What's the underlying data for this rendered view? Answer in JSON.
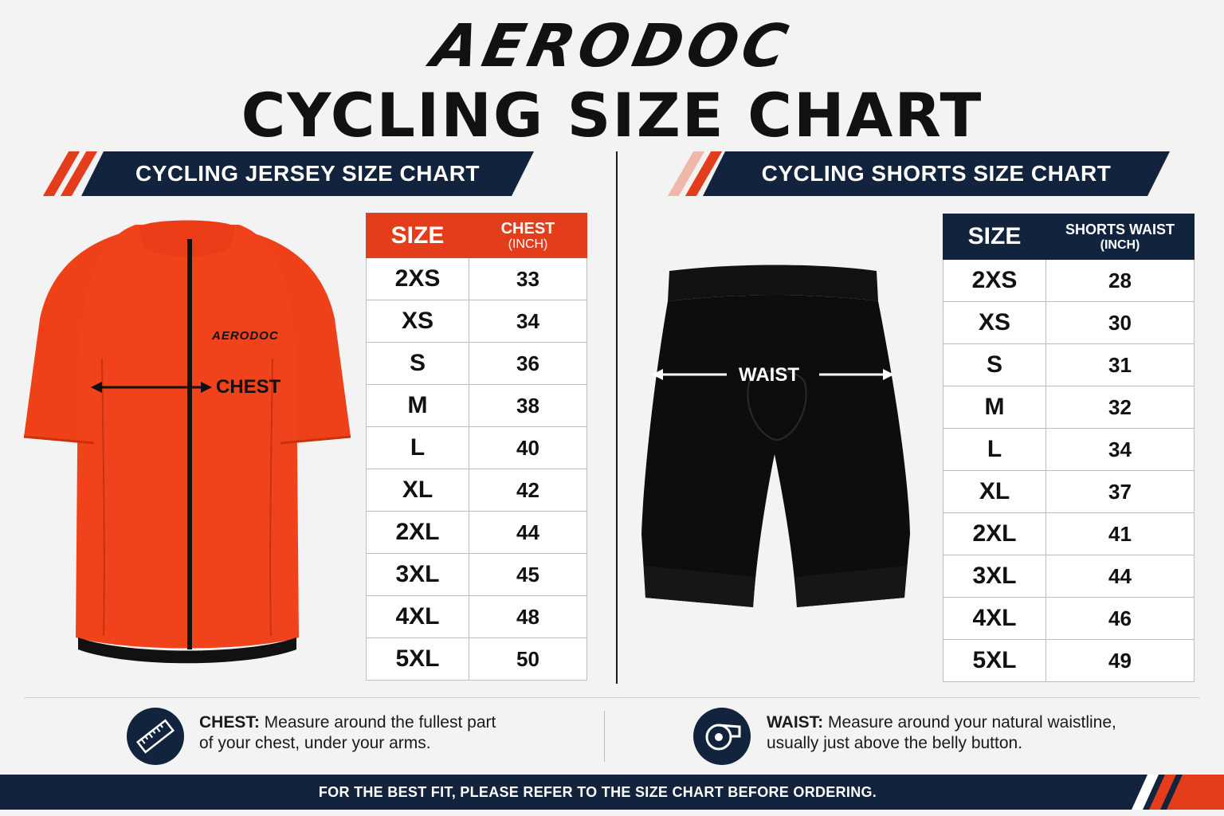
{
  "brand": "AERODOC",
  "title": "CYCLING SIZE CHART",
  "jersey": {
    "banner": "CYCLING JERSEY SIZE CHART",
    "chest_label": "CHEST",
    "logo": "AERODOC",
    "header_size": "SIZE",
    "header_measure": "CHEST",
    "header_unit": "(INCH)",
    "rows": [
      {
        "size": "2XS",
        "value": "33"
      },
      {
        "size": "XS",
        "value": "34"
      },
      {
        "size": "S",
        "value": "36"
      },
      {
        "size": "M",
        "value": "38"
      },
      {
        "size": "L",
        "value": "40"
      },
      {
        "size": "XL",
        "value": "42"
      },
      {
        "size": "2XL",
        "value": "44"
      },
      {
        "size": "3XL",
        "value": "45"
      },
      {
        "size": "4XL",
        "value": "48"
      },
      {
        "size": "5XL",
        "value": "50"
      }
    ]
  },
  "shorts": {
    "banner": "CYCLING SHORTS SIZE CHART",
    "waist_label": "WAIST",
    "header_size": "SIZE",
    "header_measure": "SHORTS WAIST",
    "header_unit": "(INCH)",
    "rows": [
      {
        "size": "2XS",
        "value": "28"
      },
      {
        "size": "XS",
        "value": "30"
      },
      {
        "size": "S",
        "value": "31"
      },
      {
        "size": "M",
        "value": "32"
      },
      {
        "size": "L",
        "value": "34"
      },
      {
        "size": "XL",
        "value": "37"
      },
      {
        "size": "2XL",
        "value": "41"
      },
      {
        "size": "3XL",
        "value": "44"
      },
      {
        "size": "4XL",
        "value": "46"
      },
      {
        "size": "5XL",
        "value": "49"
      }
    ]
  },
  "info": {
    "chest_title": "CHEST:",
    "chest_line1": " Measure around the fullest part",
    "chest_line2": "of your chest, under your arms.",
    "waist_title": "WAIST:",
    "waist_line1": " Measure around your natural waistline,",
    "waist_line2": "usually just above the belly button."
  },
  "footer": "FOR THE BEST FIT, PLEASE REFER TO THE SIZE CHART BEFORE ORDERING.",
  "colors": {
    "navy": "#12233d",
    "orange": "#e43d1c",
    "jersey": "#f0431c"
  },
  "icons": {
    "chest_info": "ruler-icon",
    "waist_info": "measuring-tape-icon"
  }
}
